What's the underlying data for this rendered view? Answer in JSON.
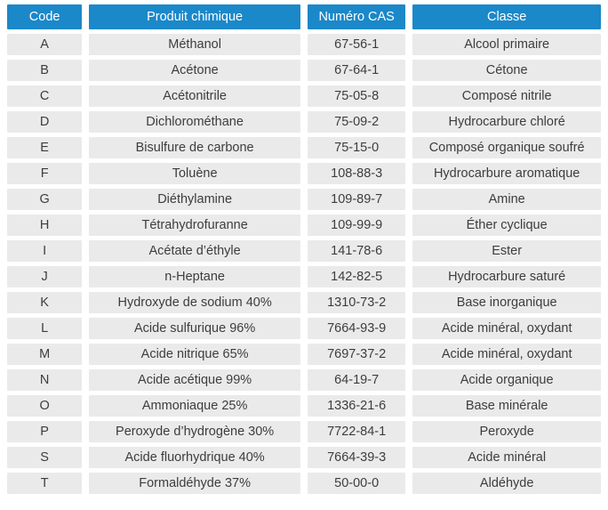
{
  "colors": {
    "header_bg": "#1b88c9",
    "header_text": "#ffffff",
    "row_bg": "#eaeaea",
    "row_text": "#3d3d3d",
    "page_bg": "#ffffff"
  },
  "table": {
    "columns": [
      {
        "key": "code",
        "label": "Code"
      },
      {
        "key": "produit",
        "label": "Produit chimique"
      },
      {
        "key": "cas",
        "label": "Numéro CAS"
      },
      {
        "key": "classe",
        "label": "Classe"
      }
    ],
    "rows": [
      {
        "code": "A",
        "produit": "Méthanol",
        "cas": "67-56-1",
        "classe": "Alcool primaire"
      },
      {
        "code": "B",
        "produit": "Acétone",
        "cas": "67-64-1",
        "classe": "Cétone"
      },
      {
        "code": "C",
        "produit": "Acétonitrile",
        "cas": "75-05-8",
        "classe": "Composé nitrile"
      },
      {
        "code": "D",
        "produit": "Dichlorométhane",
        "cas": "75-09-2",
        "classe": "Hydrocarbure chloré"
      },
      {
        "code": "E",
        "produit": "Bisulfure de carbone",
        "cas": "75-15-0",
        "classe": "Composé organique soufré"
      },
      {
        "code": "F",
        "produit": "Toluène",
        "cas": "108-88-3",
        "classe": "Hydrocarbure aromatique"
      },
      {
        "code": "G",
        "produit": "Diéthylamine",
        "cas": "109-89-7",
        "classe": "Amine"
      },
      {
        "code": "H",
        "produit": "Tétrahydrofuranne",
        "cas": "109-99-9",
        "classe": "Éther cyclique"
      },
      {
        "code": "I",
        "produit": "Acétate d’éthyle",
        "cas": "141-78-6",
        "classe": "Ester"
      },
      {
        "code": "J",
        "produit": "n-Heptane",
        "cas": "142-82-5",
        "classe": "Hydrocarbure saturé"
      },
      {
        "code": "K",
        "produit": "Hydroxyde de sodium 40%",
        "cas": "1310-73-2",
        "classe": "Base inorganique"
      },
      {
        "code": "L",
        "produit": "Acide sulfurique 96%",
        "cas": "7664-93-9",
        "classe": "Acide minéral, oxydant"
      },
      {
        "code": "M",
        "produit": "Acide nitrique 65%",
        "cas": "7697-37-2",
        "classe": "Acide minéral, oxydant"
      },
      {
        "code": "N",
        "produit": "Acide acétique 99%",
        "cas": "64-19-7",
        "classe": "Acide organique"
      },
      {
        "code": "O",
        "produit": "Ammoniaque 25%",
        "cas": "1336-21-6",
        "classe": "Base minérale"
      },
      {
        "code": "P",
        "produit": "Peroxyde d’hydrogène 30%",
        "cas": "7722-84-1",
        "classe": "Peroxyde"
      },
      {
        "code": "S",
        "produit": "Acide fluorhydrique 40%",
        "cas": "7664-39-3",
        "classe": "Acide minéral"
      },
      {
        "code": "T",
        "produit": "Formaldéhyde 37%",
        "cas": "50-00-0",
        "classe": "Aldéhyde"
      }
    ]
  }
}
